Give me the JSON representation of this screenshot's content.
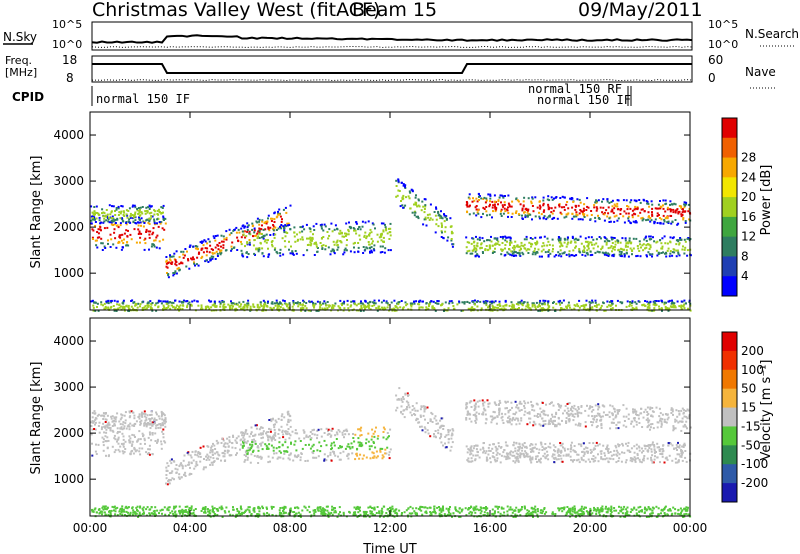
{
  "header": {
    "title": "Christmas Valley West (fitACF)",
    "beam": "Beam 15",
    "date": "09/May/2011"
  },
  "top_panels": {
    "nsky_label": "N.Sky",
    "nsearch_label": "N.Search",
    "noise_tick_high": "10^5",
    "noise_tick_low": "10^0",
    "freq_label_line1": "Freq.",
    "freq_label_line2": "[MHz]",
    "freq_ticks": [
      "18",
      "8"
    ],
    "nave_label": "Nave",
    "nave_ticks": [
      "60",
      "0"
    ],
    "cpid_label": "CPID",
    "cpid_segments": [
      "normal 150 IF",
      "normal 150 RF",
      "normal 150 IF"
    ]
  },
  "chart_data": [
    {
      "type": "heatmap",
      "name": "Power",
      "ylabel": "Slant Range [km]",
      "xlabel": "",
      "yticks": [
        "1000",
        "2000",
        "3000",
        "4000"
      ],
      "ylim": [
        200,
        4500
      ],
      "colorbar_label": "Power [dB]",
      "colorbar_ticks": [
        "4",
        "8",
        "12",
        "16",
        "20",
        "24",
        "28"
      ],
      "colorbar_colors": [
        "#0000ff",
        "#1f3fb3",
        "#2e7d60",
        "#3fa63f",
        "#a0d020",
        "#f2e600",
        "#f7a800",
        "#f06000",
        "#e00000"
      ]
    },
    {
      "type": "heatmap",
      "name": "Velocity",
      "ylabel": "Slant Range [km]",
      "xlabel": "Time UT",
      "xticks": [
        "00:00",
        "04:00",
        "08:00",
        "12:00",
        "16:00",
        "20:00",
        "00:00"
      ],
      "yticks": [
        "1000",
        "2000",
        "3000",
        "4000"
      ],
      "ylim": [
        200,
        4500
      ],
      "colorbar_label": "Velocity [m s⁻¹]",
      "colorbar_ticks": [
        "200",
        "100",
        "50",
        "15",
        "-15",
        "-50",
        "-100",
        "-200"
      ],
      "colorbar_colors": [
        "#1a1ab0",
        "#2e5aa8",
        "#2e8a50",
        "#55c83a",
        "#c0c0c0",
        "#f5b43c",
        "#f07800",
        "#f03000",
        "#e00000"
      ]
    }
  ]
}
